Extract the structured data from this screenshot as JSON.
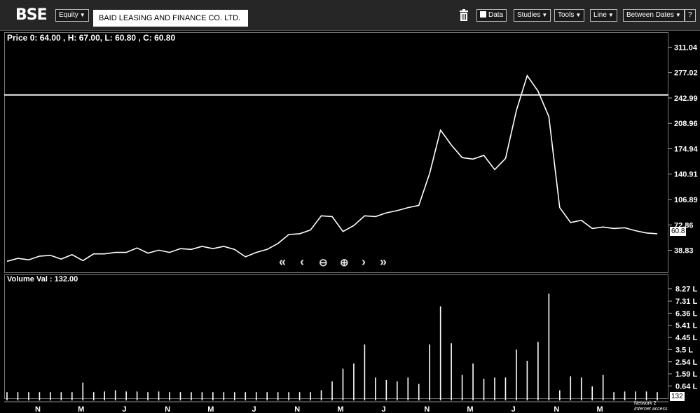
{
  "toolbar": {
    "logo": "BSE",
    "segment": "Equity",
    "company": "BAID LEASING AND FINANCE CO. LTD.",
    "data_label": "Data",
    "studies_label": "Studies",
    "tools_label": "Tools",
    "line_label": "Line",
    "dates_label": "Between Dates",
    "help_label": "?"
  },
  "price_info": "Price 0: 64.00 , H: 67.00,  L: 60.80 , C: 60.80",
  "volume_info": "Volume Val : 132.00",
  "last_price": "60.8",
  "last_volume": "132",
  "network": [
    "Network 2",
    "Internet access"
  ],
  "chart_data": [
    {
      "type": "line",
      "series": [
        {
          "values": [
            24,
            28,
            26,
            31,
            32,
            27,
            33,
            25,
            34,
            34,
            36,
            36,
            42,
            35,
            39,
            36,
            41,
            40,
            44,
            41,
            44,
            40,
            30,
            36,
            40,
            48,
            60,
            61,
            66,
            85,
            84,
            64,
            72,
            85,
            84,
            89,
            92,
            96,
            99,
            142,
            200,
            180,
            163,
            161,
            166,
            147,
            162,
            226,
            273,
            252,
            218,
            96,
            76,
            79,
            68,
            70,
            68,
            69,
            65,
            62,
            61
          ]
        }
      ],
      "y_ticks": [
        "311.04",
        "277.02",
        "242.99",
        "208.96",
        "174.94",
        "140.91",
        "106.89",
        "72.86",
        "38.83"
      ],
      "ylim": [
        14,
        318
      ],
      "reference_line": 247
    },
    {
      "type": "bar",
      "values": [
        0.15,
        0.15,
        0.15,
        0.15,
        0.15,
        0.15,
        0.15,
        0.9,
        0.15,
        0.2,
        0.3,
        0.2,
        0.2,
        0.15,
        0.2,
        0.15,
        0.15,
        0.15,
        0.15,
        0.15,
        0.15,
        0.15,
        0.15,
        0.15,
        0.15,
        0.15,
        0.15,
        0.15,
        0.15,
        0.3,
        1.0,
        2.0,
        2.4,
        3.9,
        1.3,
        1.1,
        1.0,
        1.3,
        0.8,
        3.9,
        6.9,
        4.0,
        1.5,
        2.4,
        1.2,
        1.3,
        1.3,
        3.5,
        2.6,
        4.1,
        7.9,
        0.3,
        1.4,
        1.3,
        0.6,
        1.5,
        0.15,
        0.2,
        0.2,
        0.2,
        0.15
      ],
      "y_ticks": [
        "8.27 L",
        "7.31 L",
        "6.36 L",
        "5.41 L",
        "4.45 L",
        "3.5 L",
        "2.54 L",
        "1.59 L",
        "0.64 L"
      ],
      "ylim": [
        -0.5,
        8.75
      ]
    }
  ],
  "months": [
    "N",
    "M",
    "J",
    "N",
    "M",
    "J",
    "N",
    "M",
    "J",
    "N",
    "M",
    "J",
    "N",
    "M"
  ]
}
